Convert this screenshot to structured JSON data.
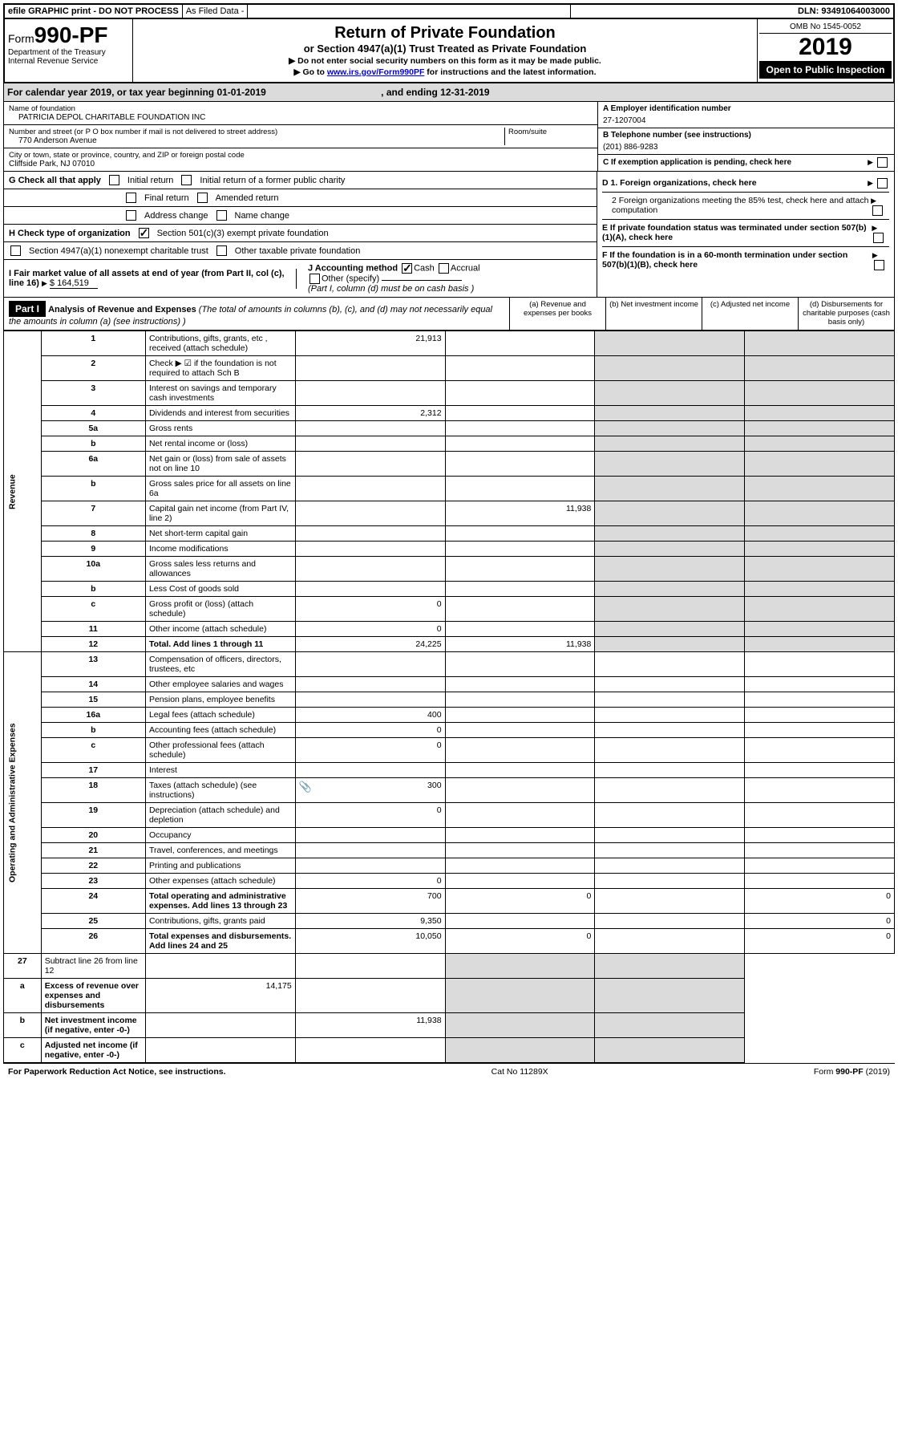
{
  "header": {
    "efile": "efile GRAPHIC print - DO NOT PROCESS",
    "asfiled": "As Filed Data -",
    "dln": "DLN: 93491064003000"
  },
  "formLabel": {
    "form": "Form",
    "num": "990-PF",
    "dept": "Department of the Treasury",
    "irs": "Internal Revenue Service"
  },
  "title": {
    "main": "Return of Private Foundation",
    "sub": "or Section 4947(a)(1) Trust Treated as Private Foundation",
    "note1": "▶ Do not enter social security numbers on this form as it may be made public.",
    "note2_pre": "▶ Go to ",
    "note2_link": "www.irs.gov/Form990PF",
    "note2_post": " for instructions and the latest information."
  },
  "yearBox": {
    "omb": "OMB No 1545-0052",
    "year": "2019",
    "open": "Open to Public Inspection"
  },
  "calendar": {
    "text_a": "For calendar year 2019, or tax year beginning 01-01-2019",
    "text_b": ", and ending 12-31-2019"
  },
  "foundation": {
    "nameLabel": "Name of foundation",
    "name": "PATRICIA DEPOL CHARITABLE FOUNDATION INC",
    "addrLabel": "Number and street (or P O  box number if mail is not delivered to street address)",
    "addr": "770 Anderson Avenue",
    "roomLabel": "Room/suite",
    "cityLabel": "City or town, state or province, country, and ZIP or foreign postal code",
    "city": "Cliffside Park, NJ  07010",
    "einLabel": "A Employer identification number",
    "ein": "27-1207004",
    "telLabel": "B Telephone number (see instructions)",
    "tel": "(201) 886-9283",
    "cLabel": "C If exemption application is pending, check here"
  },
  "checks": {
    "g": "G Check all that apply",
    "initial": "Initial return",
    "initialFormer": "Initial return of a former public charity",
    "final": "Final return",
    "amended": "Amended return",
    "address": "Address change",
    "nameChange": "Name change",
    "h": "H Check type of organization",
    "sec501": "Section 501(c)(3) exempt private foundation",
    "sec4947": "Section 4947(a)(1) nonexempt charitable trust",
    "otherTax": "Other taxable private foundation",
    "i_a": "I Fair market value of all assets at end of year (from Part II, col  (c), line 16) ",
    "i_val": "$  164,519",
    "j": "J Accounting method",
    "cash": "Cash",
    "accrual": "Accrual",
    "other": "Other (specify)",
    "jNote": "(Part I, column (d) must be on cash basis )",
    "d1": "D 1. Foreign organizations, check here",
    "d2": "2 Foreign organizations meeting the 85% test, check here and attach computation",
    "e": "E  If private foundation status was terminated under section 507(b)(1)(A), check here",
    "f": "F  If the foundation is in a 60-month termination under section 507(b)(1)(B), check here"
  },
  "part1": {
    "label": "Part I",
    "title": "Analysis of Revenue and Expenses",
    "titleNote": " (The total of amounts in columns (b), (c), and (d) may not necessarily equal the amounts in column (a) (see instructions) )",
    "colA": "(a) Revenue and expenses per books",
    "colB": "(b) Net investment income",
    "colC": "(c) Adjusted net income",
    "colD": "(d) Disbursements for charitable purposes (cash basis only)"
  },
  "revenueLabel": "Revenue",
  "expensesLabel": "Operating and Administrative Expenses",
  "rows": [
    {
      "n": "1",
      "d": "Contributions, gifts, grants, etc , received (attach schedule)",
      "a": "21,913"
    },
    {
      "n": "2",
      "d": "Check ▶ ☑ if the foundation is not required to attach Sch B"
    },
    {
      "n": "3",
      "d": "Interest on savings and temporary cash investments"
    },
    {
      "n": "4",
      "d": "Dividends and interest from securities",
      "a": "2,312"
    },
    {
      "n": "5a",
      "d": "Gross rents"
    },
    {
      "n": "b",
      "d": "Net rental income or (loss)"
    },
    {
      "n": "6a",
      "d": "Net gain or (loss) from sale of assets not on line 10"
    },
    {
      "n": "b",
      "d": "Gross sales price for all assets on line 6a"
    },
    {
      "n": "7",
      "d": "Capital gain net income (from Part IV, line 2)",
      "b": "11,938"
    },
    {
      "n": "8",
      "d": "Net short-term capital gain"
    },
    {
      "n": "9",
      "d": "Income modifications"
    },
    {
      "n": "10a",
      "d": "Gross sales less returns and allowances"
    },
    {
      "n": "b",
      "d": "Less  Cost of goods sold"
    },
    {
      "n": "c",
      "d": "Gross profit or (loss) (attach schedule)",
      "a": "0"
    },
    {
      "n": "11",
      "d": "Other income (attach schedule)",
      "a": "0"
    },
    {
      "n": "12",
      "d": "Total. Add lines 1 through 11",
      "a": "24,225",
      "b": "11,938",
      "bold": true
    }
  ],
  "expRows": [
    {
      "n": "13",
      "d": "Compensation of officers, directors, trustees, etc"
    },
    {
      "n": "14",
      "d": "Other employee salaries and wages"
    },
    {
      "n": "15",
      "d": "Pension plans, employee benefits"
    },
    {
      "n": "16a",
      "d": "Legal fees (attach schedule)",
      "a": "400"
    },
    {
      "n": "b",
      "d": "Accounting fees (attach schedule)",
      "a": "0"
    },
    {
      "n": "c",
      "d": "Other professional fees (attach schedule)",
      "a": "0"
    },
    {
      "n": "17",
      "d": "Interest"
    },
    {
      "n": "18",
      "d": "Taxes (attach schedule) (see instructions)",
      "a": "300",
      "icon": true
    },
    {
      "n": "19",
      "d": "Depreciation (attach schedule) and depletion",
      "a": "0"
    },
    {
      "n": "20",
      "d": "Occupancy"
    },
    {
      "n": "21",
      "d": "Travel, conferences, and meetings"
    },
    {
      "n": "22",
      "d": "Printing and publications"
    },
    {
      "n": "23",
      "d": "Other expenses (attach schedule)",
      "a": "0"
    },
    {
      "n": "24",
      "d": "Total operating and administrative expenses. Add lines 13 through 23",
      "a": "700",
      "b": "0",
      "dval": "0",
      "bold": true
    },
    {
      "n": "25",
      "d": "Contributions, gifts, grants paid",
      "a": "9,350",
      "dval": "0"
    },
    {
      "n": "26",
      "d": "Total expenses and disbursements. Add lines 24 and 25",
      "a": "10,050",
      "b": "0",
      "dval": "0",
      "bold": true
    }
  ],
  "netRows": [
    {
      "n": "27",
      "d": "Subtract line 26 from line 12"
    },
    {
      "n": "a",
      "d": "Excess of revenue over expenses and disbursements",
      "a": "14,175",
      "bold": true
    },
    {
      "n": "b",
      "d": "Net investment income (if negative, enter -0-)",
      "b": "11,938",
      "bold": true
    },
    {
      "n": "c",
      "d": "Adjusted net income (if negative, enter -0-)",
      "bold": true
    }
  ],
  "footer": {
    "left": "For Paperwork Reduction Act Notice, see instructions.",
    "mid": "Cat  No  11289X",
    "right": "Form 990-PF (2019)"
  }
}
